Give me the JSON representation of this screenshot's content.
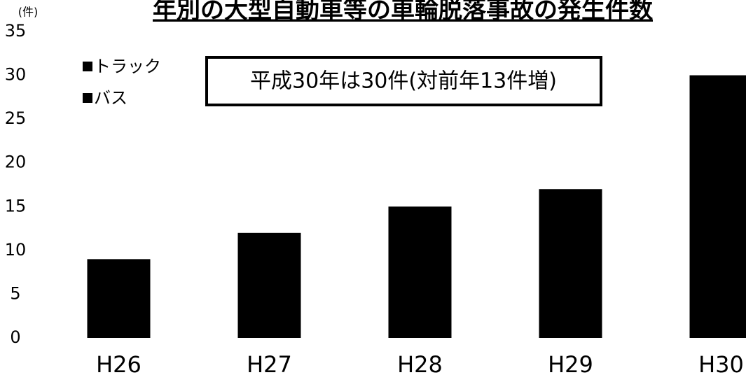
{
  "chart_data": {
    "type": "bar",
    "title": "年別の大型自動車等の車輪脱落事故の発生件数",
    "y_unit": "(件)",
    "legend": [
      "トラック",
      "バス"
    ],
    "annotation": "平成30年は30件(対前年13件増)",
    "categories": [
      "H26",
      "H27",
      "H28",
      "H29",
      "H30"
    ],
    "values": [
      9,
      12,
      15,
      17,
      30
    ],
    "color": "#000000",
    "ylim": [
      0,
      35
    ],
    "yticks": [
      0,
      5,
      10,
      15,
      20,
      25,
      30,
      35
    ],
    "grid": false
  }
}
